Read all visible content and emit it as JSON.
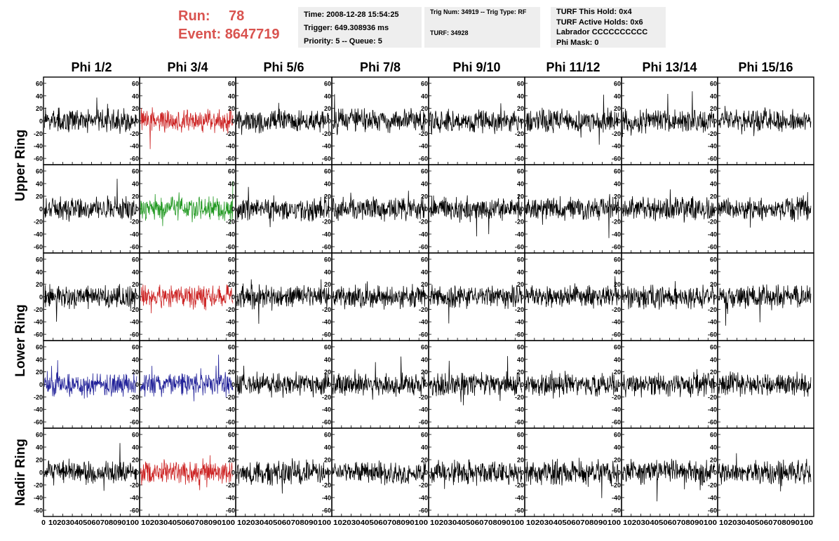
{
  "header": {
    "run_label": "Run:",
    "run_value": "78",
    "event_label": "Event:",
    "event_value": "8647719",
    "time_box": [
      "Time: 2008-12-28 15:54:25",
      "Trigger: 649.308936 ms",
      "Priority: 5 -- Queue: 5"
    ],
    "trig_box": [
      "Trig Num: 34919 -- Trig Type: RF",
      "TURF: 34928"
    ],
    "turf_box": [
      "TURF This Hold: 0x4",
      "TURF Active Holds: 0x6",
      "Labrador CCCCCCCCCC",
      "Phi Mask: 0"
    ]
  },
  "colors": {
    "header_text": "#d9534f",
    "trace_default": "#000000",
    "trace_red": "#cc2222",
    "trace_green": "#229922",
    "trace_blue": "#222299",
    "box_bg": "#eeeeee"
  },
  "chart_data": {
    "type": "line",
    "columns": [
      "Phi 1/2",
      "Phi 3/4",
      "Phi 5/6",
      "Phi 7/8",
      "Phi 9/10",
      "Phi 11/12",
      "Phi 13/14",
      "Phi 15/16"
    ],
    "rows": [
      "Upper Ring",
      "Upper Ring",
      "Lower Ring",
      "Lower Ring",
      "Nadir Ring"
    ],
    "row_labels": [
      {
        "text": "Upper Ring",
        "spans_rows": [
          0,
          1
        ]
      },
      {
        "text": "Lower Ring",
        "spans_rows": [
          2,
          3
        ]
      },
      {
        "text": "Nadir Ring",
        "spans_rows": [
          4
        ]
      }
    ],
    "xlim": [
      0,
      100
    ],
    "ylim": [
      -70,
      70
    ],
    "yticks": [
      -60,
      -40,
      -20,
      0,
      20,
      40,
      60
    ],
    "xtick_labels": [
      "0",
      "10",
      "20",
      "30",
      "40",
      "50",
      "60",
      "70",
      "80",
      "90",
      "100"
    ],
    "x_axis_label_strings": [
      "0",
      "102030405060708090100",
      "102030405060708090100",
      "102030405060708090100",
      "102030405060708090100",
      "102030405060708090100",
      "102030405060708090100",
      "102030405060708090100",
      "102030405060708090100"
    ],
    "highlighted_panels": [
      {
        "row": 0,
        "col": 1,
        "color": "red"
      },
      {
        "row": 1,
        "col": 1,
        "color": "green"
      },
      {
        "row": 2,
        "col": 1,
        "color": "red"
      },
      {
        "row": 3,
        "col": 0,
        "color": "blue"
      },
      {
        "row": 3,
        "col": 1,
        "color": "blue"
      },
      {
        "row": 4,
        "col": 1,
        "color": "red"
      }
    ],
    "trace_points_per_panel": 260,
    "typical_amplitude": 15
  }
}
